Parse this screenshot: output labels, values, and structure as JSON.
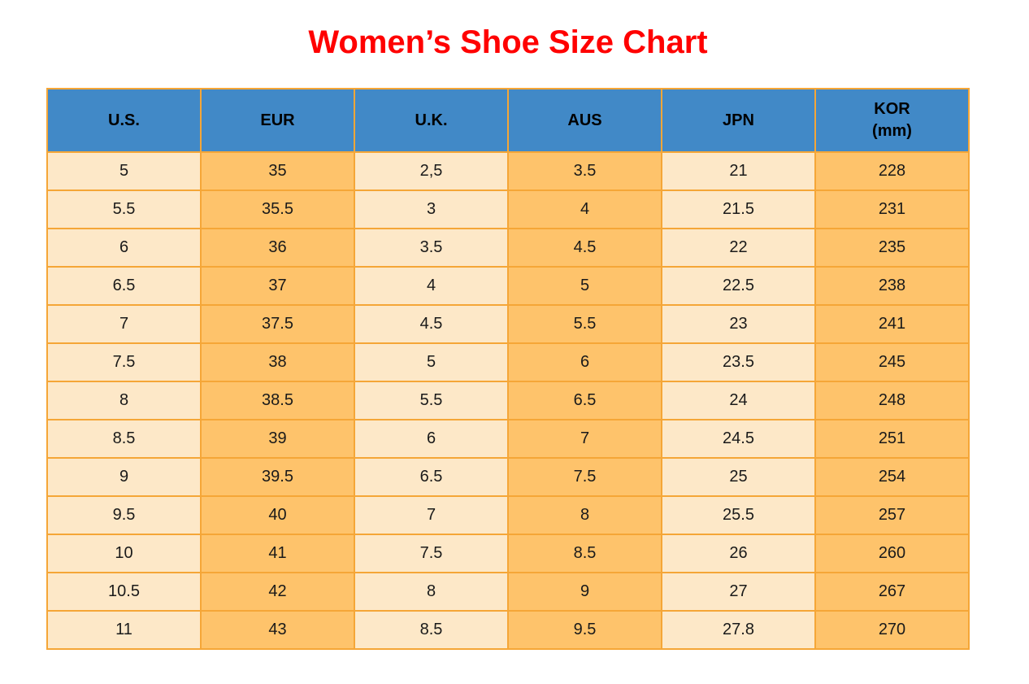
{
  "page_title": "Women’s Shoe Size Chart",
  "colors": {
    "title": "#FF0000",
    "header_bg": "#4189C7",
    "col_light": "#FDE8C8",
    "col_orange": "#FEC36B",
    "border": "#F5A637",
    "cell_text": "#1A1A1A",
    "header_text": "#000000"
  },
  "chart_data": {
    "type": "table",
    "title": "Women’s Shoe Size Chart",
    "columns": [
      "U.S.",
      "EUR",
      "U.K.",
      "AUS",
      "JPN",
      "KOR (mm)"
    ],
    "headers": [
      {
        "label": "U.S."
      },
      {
        "label": "EUR"
      },
      {
        "label": "U.K."
      },
      {
        "label": "AUS"
      },
      {
        "label": "JPN"
      },
      {
        "label": "KOR",
        "sublabel": "(mm)"
      }
    ],
    "rows": [
      [
        "5",
        "35",
        "2,5",
        "3.5",
        "21",
        "228"
      ],
      [
        "5.5",
        "35.5",
        "3",
        "4",
        "21.5",
        "231"
      ],
      [
        "6",
        "36",
        "3.5",
        "4.5",
        "22",
        "235"
      ],
      [
        "6.5",
        "37",
        "4",
        "5",
        "22.5",
        "238"
      ],
      [
        "7",
        "37.5",
        "4.5",
        "5.5",
        "23",
        "241"
      ],
      [
        "7.5",
        "38",
        "5",
        "6",
        "23.5",
        "245"
      ],
      [
        "8",
        "38.5",
        "5.5",
        "6.5",
        "24",
        "248"
      ],
      [
        "8.5",
        "39",
        "6",
        "7",
        "24.5",
        "251"
      ],
      [
        "9",
        "39.5",
        "6.5",
        "7.5",
        "25",
        "254"
      ],
      [
        "9.5",
        "40",
        "7",
        "8",
        "25.5",
        "257"
      ],
      [
        "10",
        "41",
        "7.5",
        "8.5",
        "26",
        "260"
      ],
      [
        "10.5",
        "42",
        "8",
        "9",
        "27",
        "267"
      ],
      [
        "11",
        "43",
        "8.5",
        "9.5",
        "27.8",
        "270"
      ]
    ],
    "layout": {
      "column_fill_pattern": [
        "light",
        "orange",
        "light",
        "orange",
        "light",
        "orange"
      ],
      "grid": true
    }
  }
}
